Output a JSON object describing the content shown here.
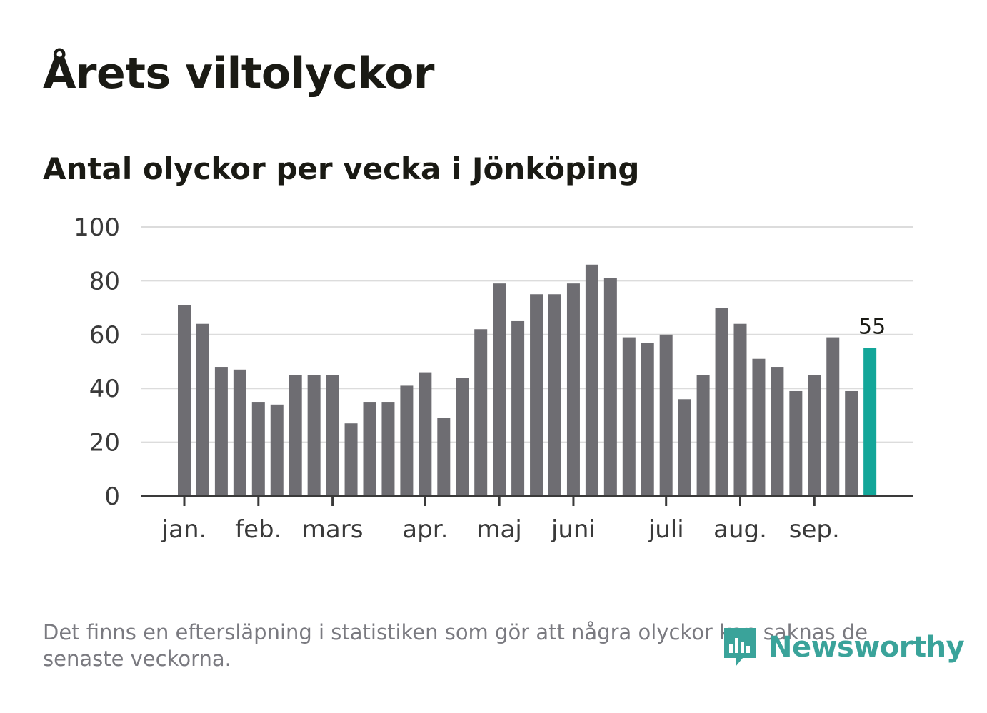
{
  "title": "Årets viltolyckor",
  "subtitle": "Antal olyckor per vecka i Jönköping",
  "footnote": "Det finns en eftersläpning i statistiken som gör att några olyckor kan saknas de senaste veckorna.",
  "logo": {
    "text": "Newsworthy",
    "color": "#3aa39a"
  },
  "colors": {
    "bar": "#6e6d72",
    "highlight": "#13a699",
    "grid": "#dcdcdc",
    "axis": "#3a3a3a",
    "text": "#3a3a3a"
  },
  "chart_data": {
    "type": "bar",
    "title": "Antal olyckor per vecka i Jönköping",
    "xlabel": "",
    "ylabel": "",
    "ylim": [
      0,
      100
    ],
    "yticks": [
      "0",
      "20",
      "40",
      "60",
      "80",
      "100"
    ],
    "grid": true,
    "values": [
      71,
      64,
      48,
      47,
      35,
      34,
      45,
      45,
      45,
      27,
      35,
      35,
      41,
      46,
      29,
      44,
      62,
      79,
      65,
      75,
      75,
      79,
      86,
      81,
      59,
      57,
      60,
      36,
      45,
      70,
      64,
      51,
      48,
      39,
      45,
      59,
      39,
      55
    ],
    "highlight_index": 37,
    "highlight_label": "55",
    "months": [
      {
        "label": "jan.",
        "week_index": 0
      },
      {
        "label": "feb.",
        "week_index": 4
      },
      {
        "label": "mars",
        "week_index": 8
      },
      {
        "label": "apr.",
        "week_index": 13
      },
      {
        "label": "maj",
        "week_index": 17
      },
      {
        "label": "juni",
        "week_index": 21
      },
      {
        "label": "juli",
        "week_index": 26
      },
      {
        "label": "aug.",
        "week_index": 30
      },
      {
        "label": "sep.",
        "week_index": 34
      }
    ]
  }
}
